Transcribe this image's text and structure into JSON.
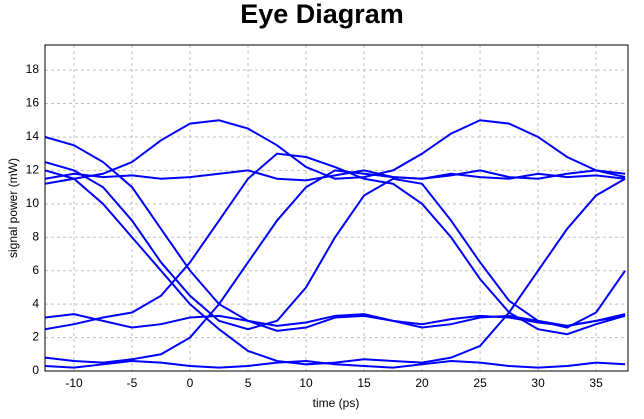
{
  "chart_data": {
    "type": "line",
    "title": "Eye Diagram",
    "x_label": "time (ps)",
    "y_label": "signal power (mW)",
    "x": [
      -12.5,
      -10,
      -7.5,
      -5,
      -2.5,
      0,
      2.5,
      5,
      7.5,
      10,
      12.5,
      15,
      17.5,
      20,
      22.5,
      25,
      27.5,
      30,
      32.5,
      35,
      37.5
    ],
    "series": [
      {
        "values": [
          12,
          11.5,
          11.8,
          12.5,
          13.8,
          14.8,
          15,
          14.5,
          13.5,
          12.2,
          11.5,
          11.6,
          12,
          13,
          14.2,
          15,
          14.8,
          14,
          12.8,
          12,
          11.8
        ]
      },
      {
        "values": [
          11.5,
          11.8,
          11.6,
          11.7,
          11.5,
          11.6,
          11.8,
          12,
          11.5,
          11.4,
          11.7,
          12,
          11.6,
          11.5,
          11.8,
          11.6,
          11.5,
          11.8,
          11.6,
          11.7,
          11.5
        ]
      },
      {
        "values": [
          12.5,
          12,
          11,
          9,
          6.5,
          4.5,
          3,
          2.5,
          3,
          5,
          8,
          10.5,
          11.5,
          11.2,
          9,
          6.5,
          4.2,
          3,
          2.6,
          3.5,
          6
        ]
      },
      {
        "values": [
          0.8,
          0.6,
          0.5,
          0.7,
          1,
          2,
          4,
          6.5,
          9,
          11,
          12,
          11.8,
          11.6,
          11.5,
          11.7,
          12,
          11.6,
          11.5,
          11.8,
          12,
          11.6
        ]
      },
      {
        "values": [
          11.2,
          11.5,
          10,
          8,
          6,
          4,
          2.5,
          1.2,
          0.6,
          0.4,
          0.5,
          0.7,
          0.6,
          0.5,
          0.8,
          1.5,
          3.5,
          6,
          8.5,
          10.5,
          11.5
        ]
      },
      {
        "values": [
          3.2,
          3.4,
          3,
          2.6,
          2.8,
          3.2,
          3.3,
          3,
          2.7,
          2.9,
          3.3,
          3.4,
          3,
          2.6,
          2.8,
          3.2,
          3.3,
          3,
          2.7,
          3,
          3.3
        ]
      },
      {
        "values": [
          0.3,
          0.2,
          0.4,
          0.6,
          0.5,
          0.3,
          0.2,
          0.3,
          0.5,
          0.6,
          0.4,
          0.3,
          0.2,
          0.4,
          0.6,
          0.5,
          0.3,
          0.2,
          0.3,
          0.5,
          0.4
        ]
      },
      {
        "values": [
          2.5,
          2.8,
          3.2,
          3.5,
          4.5,
          6.5,
          9,
          11.5,
          13,
          12.8,
          12.2,
          11.5,
          11.2,
          10,
          8,
          5.5,
          3.5,
          2.5,
          2.2,
          2.8,
          3.3
        ]
      },
      {
        "values": [
          14,
          13.5,
          12.5,
          11,
          8.5,
          6,
          4,
          3,
          2.4,
          2.6,
          3.2,
          3.3,
          3,
          2.8,
          3.1,
          3.3,
          3.2,
          2.9,
          2.7,
          3,
          3.4
        ]
      }
    ],
    "color": "#0000ff",
    "xlim": [
      -12.5,
      37.75
    ],
    "xticks": [
      -10,
      -5,
      0,
      5,
      10,
      15,
      20,
      25,
      30,
      35
    ],
    "ylim": [
      0,
      19.5
    ],
    "yticks": [
      0,
      2,
      4,
      6,
      8,
      10,
      12,
      14,
      16,
      18
    ],
    "grid": true
  }
}
